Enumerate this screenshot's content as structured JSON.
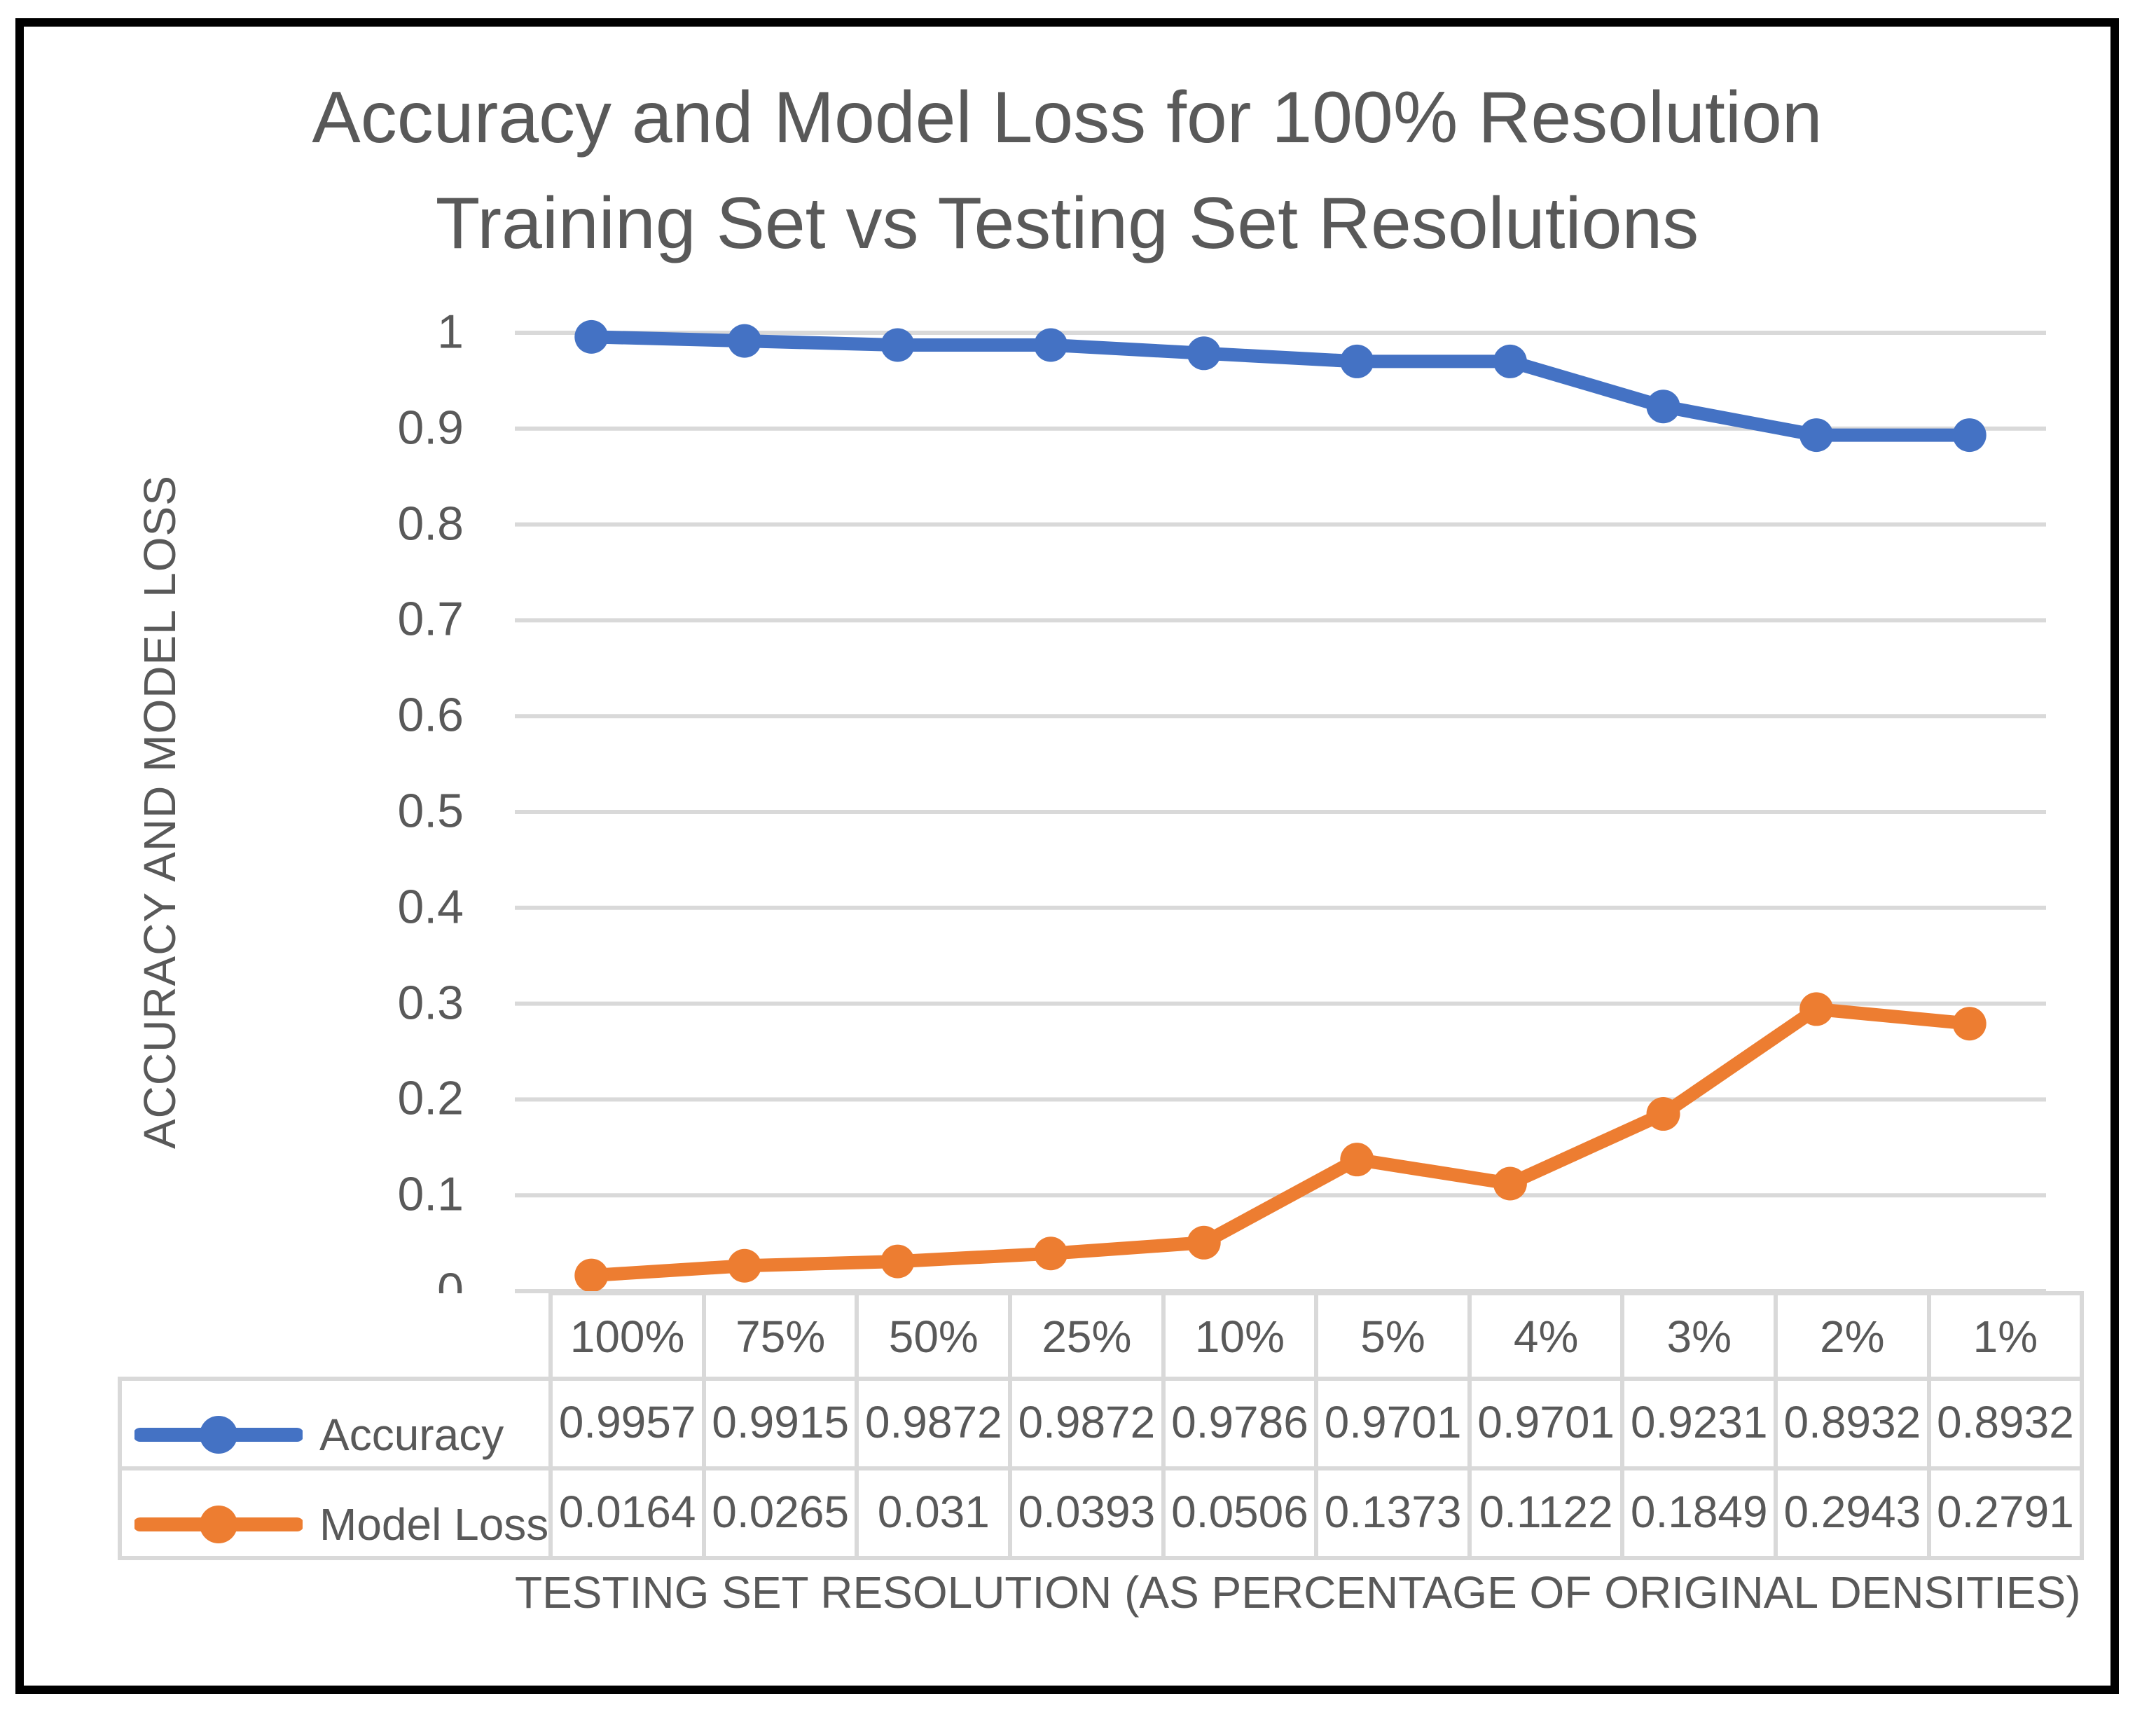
{
  "chart": {
    "title_display": "Accuracy and Model Loss for 100% Resolution\nTraining Set vs Testing Set Resolutions",
    "y_axis_title": "ACCURACY AND MODEL LOSS",
    "x_axis_title": "TESTING SET RESOLUTION (AS PERCENTAGE OF ORIGINAL DENSITIES)",
    "y_tick_labels": [
      "1",
      "0.9",
      "0.8",
      "0.7",
      "0.6",
      "0.5",
      "0.4",
      "0.3",
      "0.2",
      "0.1",
      "0"
    ]
  },
  "chart_data": {
    "type": "line",
    "title": "Accuracy and Model Loss for 100% Resolution Training Set vs Testing Set Resolutions",
    "xlabel": "TESTING SET RESOLUTION (AS PERCENTAGE OF ORIGINAL DENSITIES)",
    "ylabel": "ACCURACY AND MODEL LOSS",
    "categories": [
      "100%",
      "75%",
      "50%",
      "25%",
      "10%",
      "5%",
      "4%",
      "3%",
      "2%",
      "1%"
    ],
    "series": [
      {
        "name": "Accuracy",
        "color": "#4472C4",
        "values": [
          0.9957,
          0.9915,
          0.9872,
          0.9872,
          0.9786,
          0.9701,
          0.9701,
          0.9231,
          0.8932,
          0.8932
        ],
        "labels": [
          "0.9957",
          "0.9915",
          "0.9872",
          "0.9872",
          "0.9786",
          "0.9701",
          "0.9701",
          "0.9231",
          "0.8932",
          "0.8932"
        ]
      },
      {
        "name": "Model Loss",
        "color": "#ED7D31",
        "values": [
          0.0164,
          0.0265,
          0.031,
          0.0393,
          0.0506,
          0.1373,
          0.1122,
          0.1849,
          0.2943,
          0.2791
        ],
        "labels": [
          "0.0164",
          "0.0265",
          "0.031",
          "0.0393",
          "0.0506",
          "0.1373",
          "0.1122",
          "0.1849",
          "0.2943",
          "0.2791"
        ]
      }
    ],
    "ylim": [
      0,
      1
    ],
    "y_tick_step": 0.1,
    "grid": true,
    "marker": "circle",
    "legend_position": "data-table-left",
    "colors": {
      "accuracy": "#4472C4",
      "model_loss": "#ED7D31",
      "text": "#595959",
      "gridline": "#D9D9D9",
      "table_border": "#D9D9D9",
      "frame_border": "#000000"
    }
  }
}
